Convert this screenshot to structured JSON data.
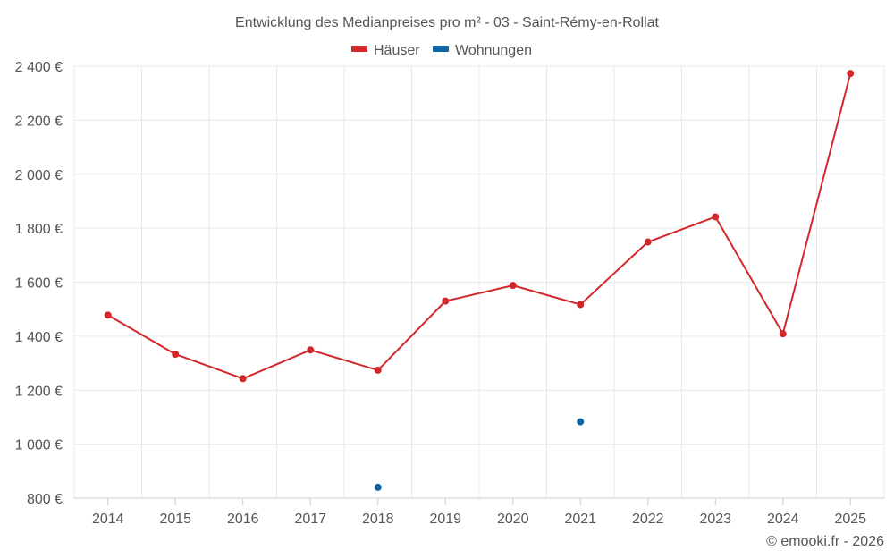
{
  "colors": {
    "houses": "#d3282b",
    "apartments": "#0f66a3",
    "grid": "#e9e9e9",
    "text": "#555555"
  },
  "chart_data": {
    "type": "line",
    "title": "Entwicklung des Medianpreises pro m² - 03 - Saint-Rémy-en-Rollat",
    "categories": [
      "2014",
      "2015",
      "2016",
      "2017",
      "2018",
      "2019",
      "2020",
      "2021",
      "2022",
      "2023",
      "2024",
      "2025"
    ],
    "ylim": [
      800,
      2400
    ],
    "yticks": [
      800,
      1000,
      1200,
      1400,
      1600,
      1800,
      2000,
      2200,
      2400
    ],
    "ytick_labels": [
      "800 €",
      "1 000 €",
      "1 200 €",
      "1 400 €",
      "1 600 €",
      "1 800 €",
      "2 000 €",
      "2 200 €",
      "2 400 €"
    ],
    "legend_position": "top-center",
    "grid": true,
    "series": [
      {
        "name": "Häuser",
        "color": "#d3282b",
        "values": [
          1478,
          1333,
          1243,
          1349,
          1274,
          1530,
          1588,
          1517,
          1749,
          1842,
          1409,
          2373
        ]
      },
      {
        "name": "Wohnungen",
        "color": "#0f66a3",
        "values": [
          null,
          null,
          null,
          null,
          840,
          null,
          null,
          1083,
          null,
          null,
          null,
          null
        ]
      }
    ]
  },
  "credit": "© emooki.fr - 2026"
}
